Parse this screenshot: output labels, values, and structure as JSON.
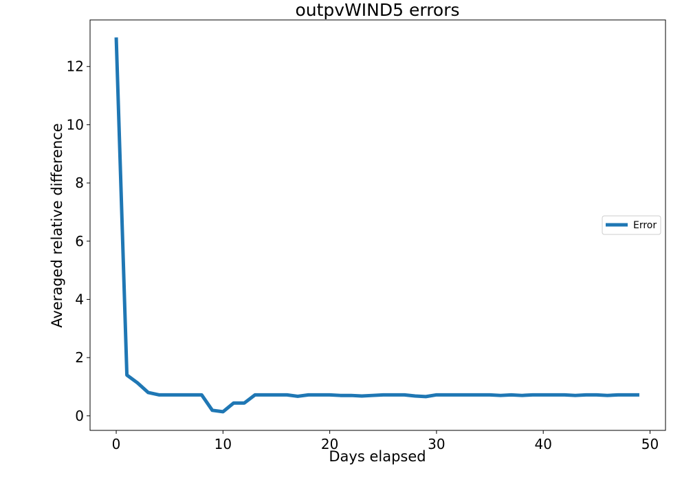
{
  "chart_data": {
    "type": "line",
    "title": "outpvWIND5 errors",
    "xlabel": "Days elapsed",
    "ylabel": "Averaged relative difference",
    "xlim": [
      -2.45,
      51.45
    ],
    "ylim": [
      -0.5,
      13.6
    ],
    "xticks": [
      0,
      10,
      20,
      30,
      40,
      50
    ],
    "yticks": [
      0,
      2,
      4,
      6,
      8,
      10,
      12
    ],
    "grid": false,
    "legend_position": "center right",
    "series": [
      {
        "name": "Error",
        "color": "#1f77b4",
        "x": [
          0,
          1,
          2,
          3,
          4,
          5,
          6,
          7,
          8,
          9,
          10,
          11,
          12,
          13,
          14,
          15,
          16,
          17,
          18,
          19,
          20,
          21,
          22,
          23,
          24,
          25,
          26,
          27,
          28,
          29,
          30,
          31,
          32,
          33,
          34,
          35,
          36,
          37,
          38,
          39,
          40,
          41,
          42,
          43,
          44,
          45,
          46,
          47,
          48,
          49
        ],
        "y": [
          13.0,
          1.4,
          1.13,
          0.8,
          0.72,
          0.72,
          0.72,
          0.72,
          0.72,
          0.19,
          0.14,
          0.44,
          0.44,
          0.72,
          0.72,
          0.72,
          0.72,
          0.67,
          0.72,
          0.72,
          0.72,
          0.7,
          0.7,
          0.68,
          0.7,
          0.72,
          0.72,
          0.72,
          0.68,
          0.66,
          0.72,
          0.72,
          0.72,
          0.72,
          0.72,
          0.72,
          0.7,
          0.72,
          0.7,
          0.72,
          0.72,
          0.72,
          0.72,
          0.7,
          0.72,
          0.72,
          0.7,
          0.72,
          0.72,
          0.72
        ]
      }
    ]
  }
}
